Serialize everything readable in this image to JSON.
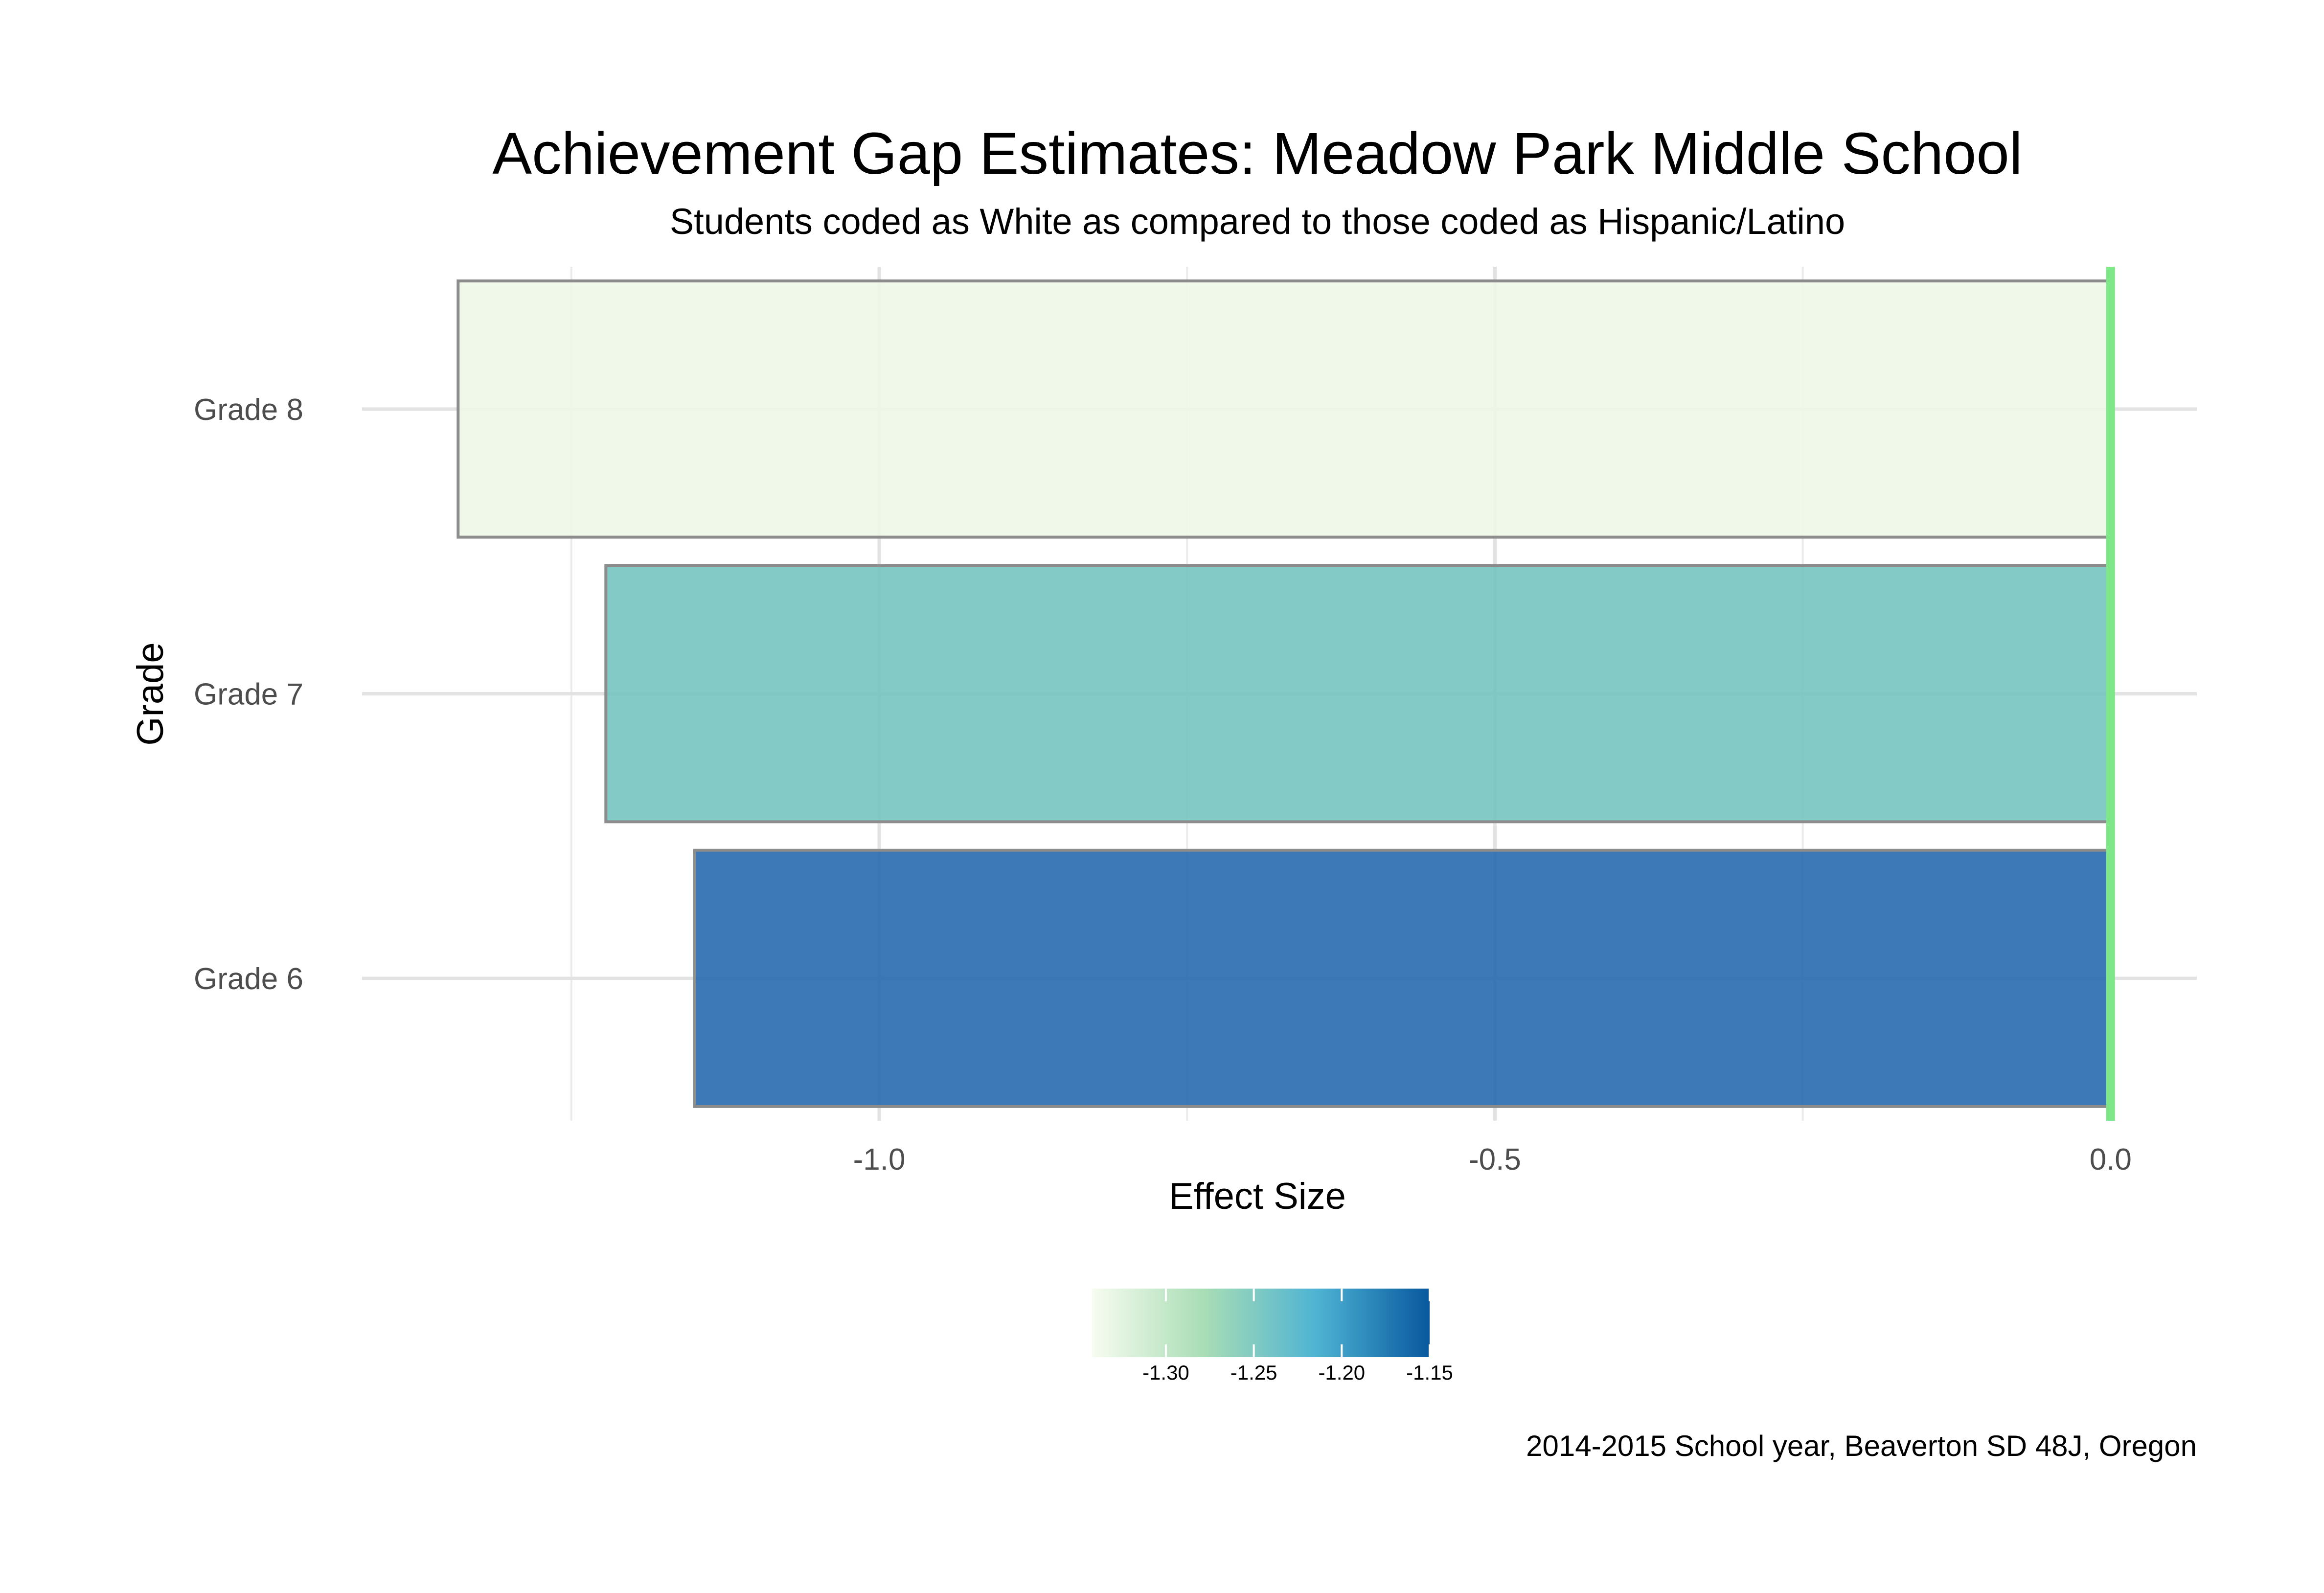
{
  "chart_data": {
    "type": "bar",
    "orientation": "horizontal",
    "title": "Achievement Gap Estimates: Meadow Park Middle School",
    "subtitle": "Students coded as White as compared to those coded as Hispanic/Latino",
    "xlabel": "Effect Size",
    "ylabel": "Grade",
    "caption": "2014-2015 School year, Beaverton SD 48J, Oregon",
    "categories": [
      "Grade 6",
      "Grade 7",
      "Grade 8"
    ],
    "values": [
      -1.15,
      -1.222,
      -1.342
    ],
    "xlim": [
      -1.42,
      0.07
    ],
    "x_ticks": [
      -1.0,
      -0.5,
      0.0
    ],
    "x_tick_labels": [
      "-1.0",
      "-0.5",
      "0.0"
    ],
    "grid": true,
    "reference_line": {
      "x": 0.0,
      "color": "#7ee787"
    },
    "bar_colors": [
      "#2266ad",
      "#72c3bf",
      "#eef8e6"
    ],
    "bar_outline": "#8c8c8c",
    "legend": {
      "type": "colorbar",
      "placement": "bottom",
      "range": [
        -1.342,
        -1.15
      ],
      "ticks": [
        -1.3,
        -1.25,
        -1.2,
        -1.15
      ],
      "tick_labels": [
        "-1.30",
        "-1.25",
        "-1.20",
        "-1.15"
      ],
      "colors": [
        "#f7fcf0",
        "#a8ddb5",
        "#4eb3d3",
        "#08589e"
      ]
    }
  }
}
